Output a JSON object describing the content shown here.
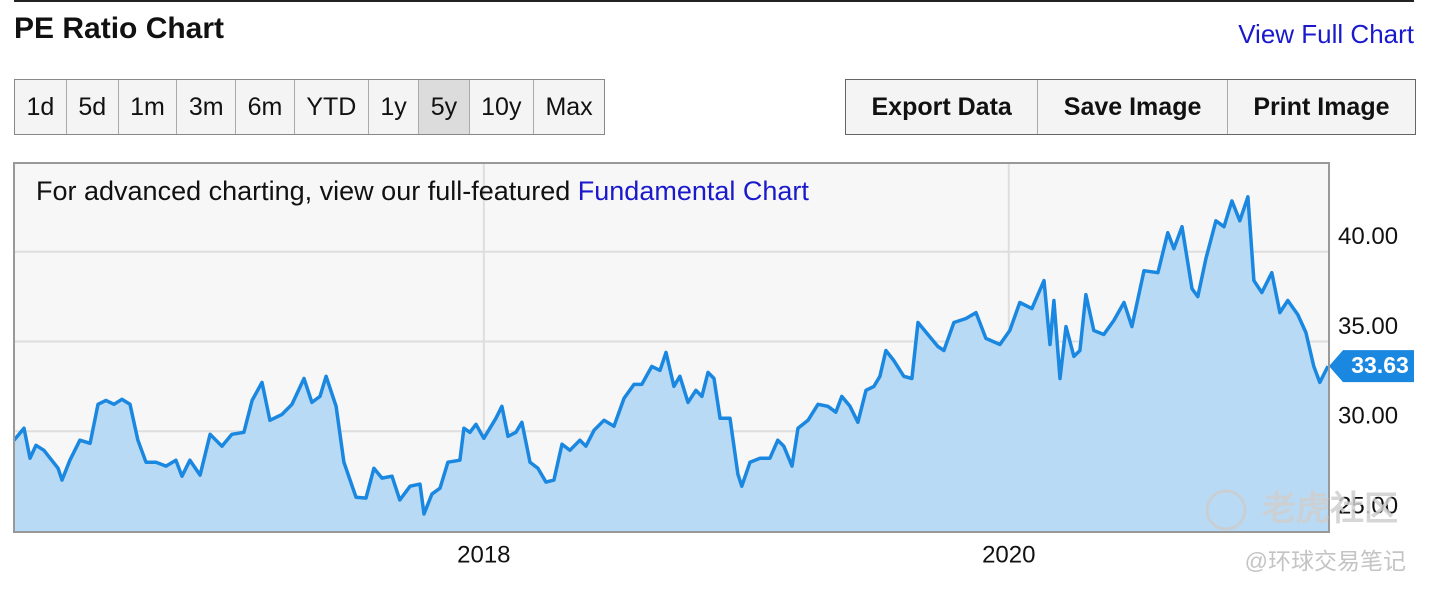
{
  "header": {
    "title": "PE Ratio Chart",
    "link": "View Full Chart"
  },
  "range_buttons": [
    "1d",
    "5d",
    "1m",
    "3m",
    "6m",
    "YTD",
    "1y",
    "5y",
    "10y",
    "Max"
  ],
  "selected_range": "5y",
  "actions": [
    "Export Data",
    "Save Image",
    "Print Image"
  ],
  "chart_data": {
    "type": "area",
    "notice": "For advanced charting, view our full-featured ",
    "notice_link": "Fundamental Chart",
    "color": "#1a87e0",
    "fill_color": "#b9daf4",
    "x": [
      2016.21,
      2016.248,
      2016.271,
      2016.294,
      2016.324,
      2016.378,
      2016.393,
      2016.423,
      2016.461,
      2016.5,
      2016.53,
      2016.56,
      2016.591,
      2016.621,
      2016.652,
      2016.682,
      2016.713,
      2016.751,
      2016.789,
      2016.827,
      2016.85,
      2016.88,
      2016.919,
      2016.957,
      2017.002,
      2017.04,
      2017.086,
      2017.117,
      2017.155,
      2017.185,
      2017.231,
      2017.269,
      2017.315,
      2017.345,
      2017.376,
      2017.399,
      2017.437,
      2017.467,
      2017.513,
      2017.551,
      2017.581,
      2017.612,
      2017.65,
      2017.68,
      2017.719,
      2017.757,
      2017.772,
      2017.802,
      2017.833,
      2017.863,
      2017.909,
      2017.924,
      2017.947,
      2017.97,
      2018.0,
      2018.046,
      2018.069,
      2018.092,
      2018.122,
      2018.145,
      2018.176,
      2018.206,
      2018.237,
      2018.267,
      2018.298,
      2018.328,
      2018.366,
      2018.389,
      2018.42,
      2018.458,
      2018.496,
      2018.534,
      2018.572,
      2018.602,
      2018.64,
      2018.671,
      2018.694,
      2018.724,
      2018.747,
      2018.778,
      2018.808,
      2018.831,
      2018.854,
      2018.877,
      2018.9,
      2018.938,
      2018.968,
      2018.983,
      2019.014,
      2019.052,
      2019.09,
      2019.12,
      2019.143,
      2019.174,
      2019.197,
      2019.235,
      2019.273,
      2019.311,
      2019.341,
      2019.364,
      2019.395,
      2019.425,
      2019.456,
      2019.486,
      2019.509,
      2019.532,
      2019.562,
      2019.6,
      2019.631,
      2019.654,
      2019.692,
      2019.73,
      2019.753,
      2019.791,
      2019.837,
      2019.875,
      2019.913,
      2019.966,
      2020.004,
      2020.042,
      2020.088,
      2020.134,
      2020.157,
      2020.172,
      2020.195,
      2020.218,
      2020.248,
      2020.271,
      2020.294,
      2020.324,
      2020.362,
      2020.4,
      2020.439,
      2020.469,
      2020.515,
      2020.568,
      2020.606,
      2020.629,
      2020.66,
      2020.698,
      2020.72,
      2020.751,
      2020.789,
      2020.82,
      2020.85,
      2020.88,
      2020.911,
      2020.934,
      2020.964,
      2021.002,
      2021.033,
      2021.063,
      2021.101,
      2021.132,
      2021.162,
      2021.185,
      2021.216
    ],
    "values": [
      29.5,
      30.17,
      28.5,
      29.22,
      28.94,
      27.94,
      27.28,
      28.39,
      29.5,
      29.33,
      31.5,
      31.72,
      31.5,
      31.78,
      31.5,
      29.5,
      28.28,
      28.28,
      28.06,
      28.39,
      27.5,
      28.39,
      27.56,
      29.83,
      29.17,
      29.83,
      29.94,
      31.72,
      32.72,
      30.61,
      30.94,
      31.5,
      32.94,
      31.61,
      31.94,
      33.06,
      31.39,
      28.28,
      26.33,
      26.28,
      27.94,
      27.39,
      27.5,
      26.17,
      26.94,
      27.06,
      25.39,
      26.5,
      26.83,
      28.28,
      28.39,
      30.17,
      29.94,
      30.39,
      29.61,
      30.72,
      31.39,
      29.72,
      29.94,
      30.5,
      28.28,
      27.94,
      27.17,
      27.28,
      29.28,
      28.94,
      29.5,
      29.17,
      30.06,
      30.61,
      30.28,
      31.83,
      32.61,
      32.61,
      33.61,
      33.39,
      34.39,
      32.5,
      33.06,
      31.61,
      32.28,
      31.94,
      33.28,
      32.94,
      30.72,
      30.72,
      27.61,
      26.94,
      28.28,
      28.5,
      28.5,
      29.5,
      29.17,
      28.06,
      30.17,
      30.61,
      31.5,
      31.39,
      31.06,
      31.94,
      31.39,
      30.5,
      32.28,
      32.5,
      33.06,
      34.5,
      33.94,
      33.06,
      32.94,
      36.06,
      35.39,
      34.72,
      34.5,
      36.06,
      36.28,
      36.61,
      35.17,
      34.83,
      35.61,
      37.17,
      36.83,
      38.39,
      34.83,
      37.28,
      32.94,
      35.83,
      34.17,
      34.5,
      37.61,
      35.61,
      35.39,
      36.17,
      37.17,
      35.83,
      38.94,
      38.83,
      41.06,
      40.17,
      41.39,
      37.94,
      37.5,
      39.61,
      41.72,
      41.39,
      42.83,
      41.72,
      43.06,
      38.39,
      37.72,
      38.83,
      36.61,
      37.28,
      36.5,
      35.5,
      33.61,
      32.72,
      33.63
    ],
    "xlim": [
      2016.21,
      2021.22
    ],
    "ylim": [
      24.39,
      44.94
    ],
    "xticks": [
      2018,
      2020
    ],
    "yticks": [
      {
        "value": 25,
        "label": "25.00"
      },
      {
        "value": 30,
        "label": "30.00"
      },
      {
        "value": 35,
        "label": "35.00"
      },
      {
        "value": 40,
        "label": "40.00"
      }
    ],
    "grid": true
  },
  "watermark": [
    "老虎社区",
    "@环球交易笔记"
  ]
}
